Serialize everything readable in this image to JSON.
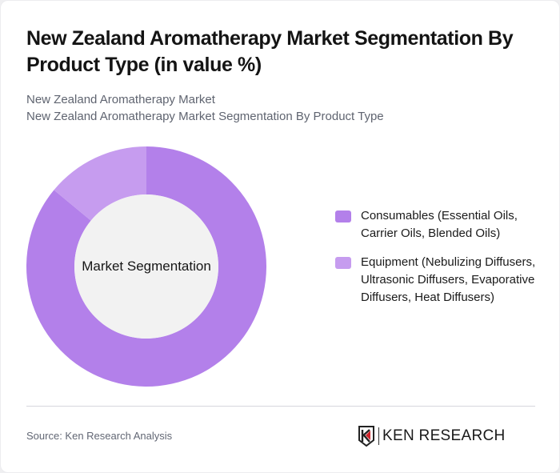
{
  "header": {
    "title": "New Zealand Aromatherapy Market Segmentation By Product Type (in value %)",
    "subtitle_line1": "New Zealand Aromatherapy Market",
    "subtitle_line2": "New Zealand Aromatherapy Market Segmentation By Product Type"
  },
  "chart": {
    "center_label": "Market Segmentation"
  },
  "legend": [
    {
      "label": "Consumables (Essential Oils, Carrier Oils, Blended Oils)",
      "color": "#b380ea"
    },
    {
      "label": "Equipment (Nebulizing Diffusers, Ultrasonic Diffusers, Evaporative Diffusers, Heat Diffusers)",
      "color": "#c69cef"
    }
  ],
  "footer": {
    "source": "Source: Ken Research Analysis",
    "logo_text": "KEN RESEARCH"
  },
  "chart_data": {
    "type": "pie",
    "subtype": "donut",
    "title": "New Zealand Aromatherapy Market Segmentation By Product Type (in value %)",
    "center_label": "Market Segmentation",
    "categories": [
      "Consumables (Essential Oils, Carrier Oils, Blended Oils)",
      "Equipment (Nebulizing Diffusers, Ultrasonic Diffusers, Evaporative Diffusers, Heat Diffusers)"
    ],
    "values": [
      86,
      14
    ],
    "colors": [
      "#b380ea",
      "#c69cef"
    ],
    "legend_position": "right",
    "data_labels": false
  }
}
